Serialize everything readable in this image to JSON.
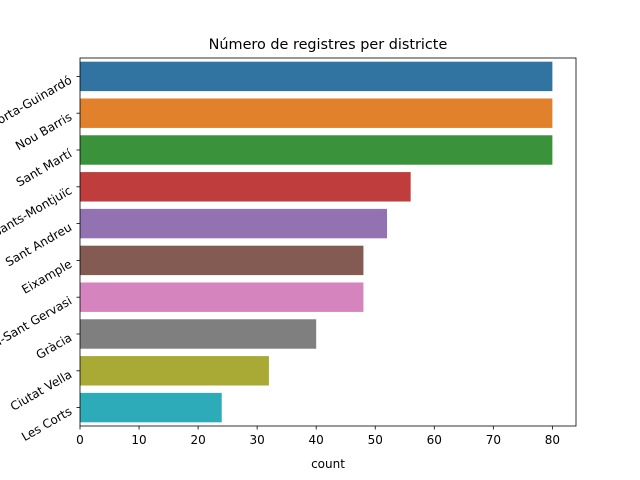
{
  "chart_data": {
    "type": "bar",
    "orientation": "horizontal",
    "title": "Número de registres per districte",
    "xlabel": "count",
    "ylabel": "",
    "xlim": [
      0,
      84
    ],
    "xticks": [
      0,
      10,
      20,
      30,
      40,
      50,
      60,
      70,
      80
    ],
    "grid": false,
    "legend": false,
    "categories": [
      "Horta-Guinardó",
      "Nou Barris",
      "Sant Martí",
      "Sants-Montjuïc",
      "Sant Andreu",
      "Eixample",
      "Sarrià-Sant Gervasi",
      "Gràcia",
      "Ciutat Vella",
      "Les Corts"
    ],
    "values": [
      80,
      80,
      80,
      56,
      52,
      48,
      48,
      40,
      32,
      24
    ],
    "colors": [
      "#3274a1",
      "#e1812c",
      "#3a923a",
      "#c03d3e",
      "#9372b2",
      "#845b53",
      "#d684bd",
      "#7f7f7f",
      "#a9aa35",
      "#2eabb8"
    ]
  }
}
